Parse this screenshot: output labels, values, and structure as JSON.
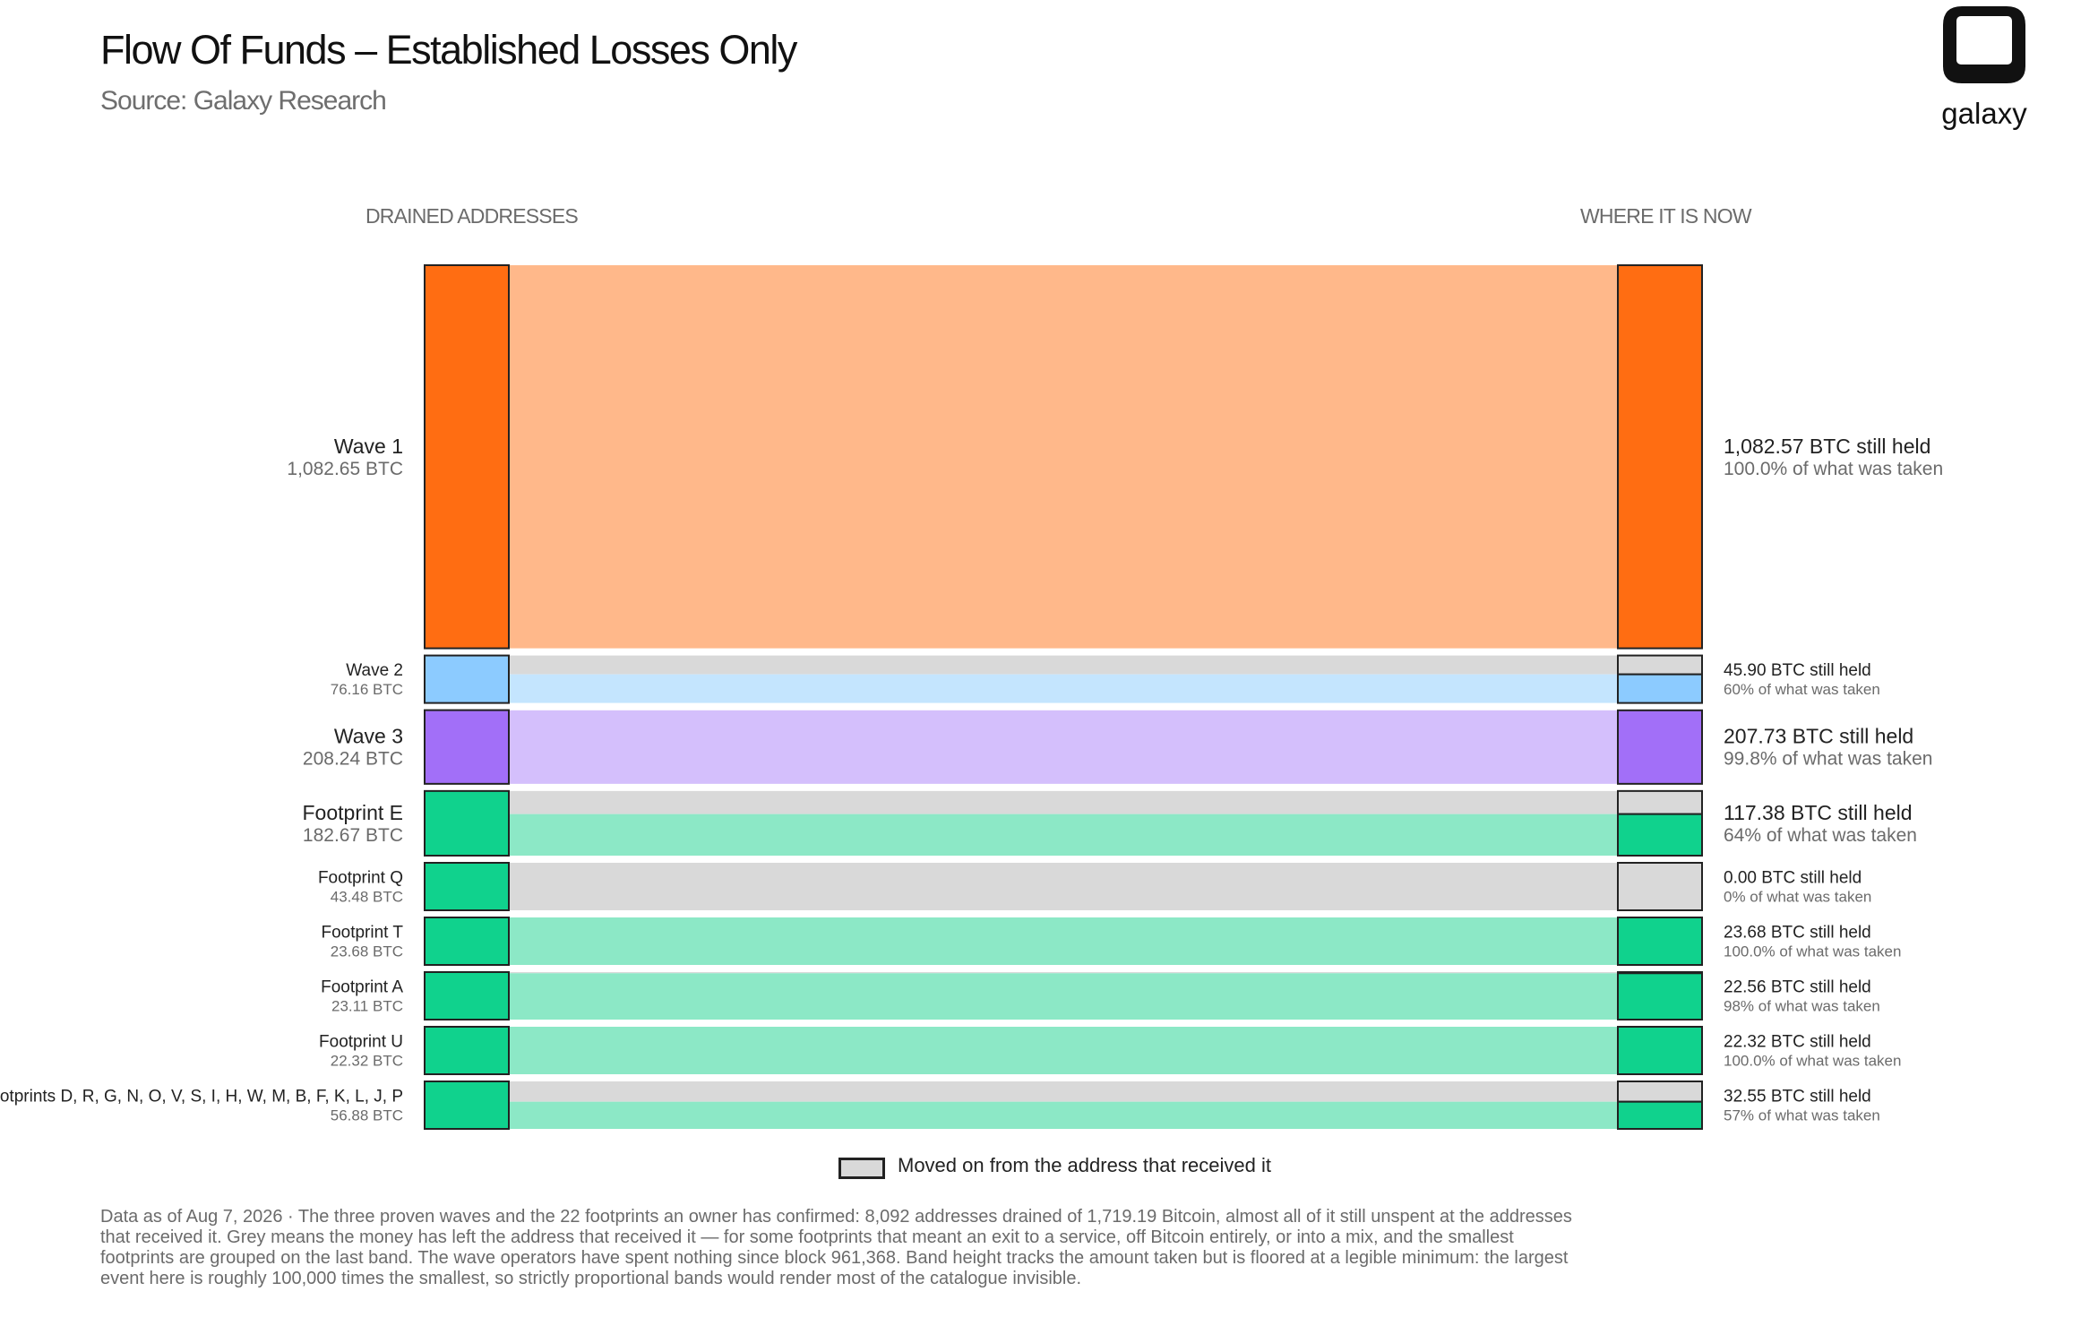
{
  "header": {
    "title": "Flow Of Funds – Established Losses Only",
    "subtitle": "Source: Galaxy Research",
    "logo_text": "galaxy"
  },
  "columns": {
    "left": "DRAINED ADDRESSES",
    "right": "WHERE IT IS NOW"
  },
  "legend": {
    "moved_label": "Moved on from the address that received it",
    "moved_color": "#d9d9d9"
  },
  "footnote": "Data as of Aug 7, 2026 · The three proven waves and the 22 footprints an owner has confirmed: 8,092 addresses drained of 1,719.19 Bitcoin, almost all of it still unspent at the addresses that received it. Grey means the money has left the address that received it — for some footprints that meant an exit to a service, off Bitcoin entirely, or into a mix, and the smallest footprints are grouped on the last band. The wave operators have spent nothing since block 961,368. Band height tracks the amount taken but is floored at a legible minimum: the largest event here is roughly 100,000 times the smallest, so strictly proportional bands would render most of the catalogue invisible.",
  "chart_data": {
    "type": "sankey",
    "title": "Flow Of Funds – Established Losses Only",
    "source": "Source: Galaxy Research",
    "left_axis_label": "DRAINED ADDRESSES",
    "right_axis_label": "WHERE IT IS NOW",
    "unit": "BTC",
    "moved_color": "#d9d9d9",
    "flows": [
      {
        "name": "Wave 1",
        "taken": 1082.65,
        "taken_label": "1,082.65 BTC",
        "held": 1082.57,
        "held_label": "1,082.57 BTC still held",
        "pct_label": "100.0% of what was taken",
        "color": "#ff6d12",
        "light": "#ffb88a",
        "label_size": "large"
      },
      {
        "name": "Wave 2",
        "taken": 76.16,
        "taken_label": "76.16 BTC",
        "held": 45.9,
        "held_label": "45.90 BTC still held",
        "pct_label": "60% of what was taken",
        "color": "#8ccbff",
        "light": "#c4e5fe",
        "label_size": "small"
      },
      {
        "name": "Wave 3",
        "taken": 208.24,
        "taken_label": "208.24 BTC",
        "held": 207.73,
        "held_label": "207.73 BTC still held",
        "pct_label": "99.8% of what was taken",
        "color": "#a26ff8",
        "light": "#d4bffc",
        "label_size": "large"
      },
      {
        "name": "Footprint E",
        "taken": 182.67,
        "taken_label": "182.67 BTC",
        "held": 117.38,
        "held_label": "117.38 BTC still held",
        "pct_label": "64% of what was taken",
        "color": "#10d28d",
        "light": "#8ce8c6",
        "label_size": "large"
      },
      {
        "name": "Footprint Q",
        "taken": 43.48,
        "taken_label": "43.48 BTC",
        "held": 0.0,
        "held_label": "0.00 BTC still held",
        "pct_label": "0% of what was taken",
        "color": "#10d28d",
        "light": "#8ce8c6",
        "label_size": "small"
      },
      {
        "name": "Footprint T",
        "taken": 23.68,
        "taken_label": "23.68 BTC",
        "held": 23.68,
        "held_label": "23.68 BTC still held",
        "pct_label": "100.0% of what was taken",
        "color": "#10d28d",
        "light": "#8ce8c6",
        "label_size": "small"
      },
      {
        "name": "Footprint A",
        "taken": 23.11,
        "taken_label": "23.11 BTC",
        "held": 22.56,
        "held_label": "22.56 BTC still held",
        "pct_label": "98% of what was taken",
        "color": "#10d28d",
        "light": "#8ce8c6",
        "label_size": "small"
      },
      {
        "name": "Footprint U",
        "taken": 22.32,
        "taken_label": "22.32 BTC",
        "held": 22.32,
        "held_label": "22.32 BTC still held",
        "pct_label": "100.0% of what was taken",
        "color": "#10d28d",
        "light": "#8ce8c6",
        "label_size": "small"
      },
      {
        "name": "Footprints D, R, G, N, O, V, S, I, H, W, M, B, F, K, L, J, P",
        "taken": 56.88,
        "taken_label": "56.88 BTC",
        "held": 32.55,
        "held_label": "32.55 BTC still held",
        "pct_label": "57% of what was taken",
        "color": "#10d28d",
        "light": "#8ce8c6",
        "label_size": "small"
      }
    ]
  }
}
